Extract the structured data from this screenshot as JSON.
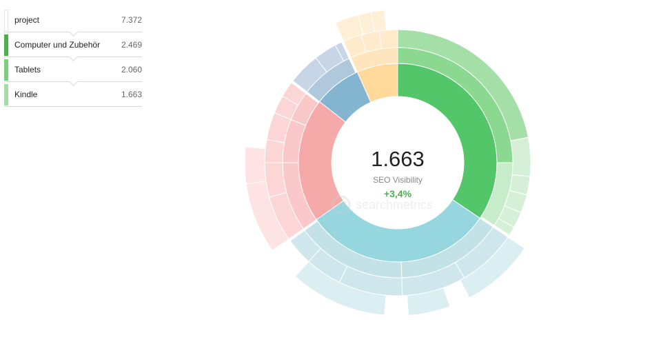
{
  "breadcrumb": [
    {
      "label": "project",
      "value": "7.372",
      "color": ""
    },
    {
      "label": "Computer und Zubehör",
      "value": "2.469",
      "color": "#4caf50"
    },
    {
      "label": "Tablets",
      "value": "2.060",
      "color": "#7bcf7e"
    },
    {
      "label": "Kindle",
      "value": "1.663",
      "color": "#a4dca5"
    }
  ],
  "center": {
    "value": "1.663",
    "label": "SEO Visibility",
    "delta": "+3,4%"
  },
  "watermark": "searchmetrics",
  "chart_data": {
    "type": "sunburst",
    "title": "",
    "rings": [
      {
        "level": 1,
        "segments": [
          {
            "color": "#54c66a",
            "start_deg": 0,
            "end_deg": 124
          },
          {
            "color": "#96d6de",
            "start_deg": 124,
            "end_deg": 235
          },
          {
            "color": "#f6a9a9",
            "start_deg": 235,
            "end_deg": 308
          },
          {
            "color": "#84b5d0",
            "start_deg": 308,
            "end_deg": 336
          },
          {
            "color": "#ffd99a",
            "start_deg": 336,
            "end_deg": 360
          }
        ]
      },
      {
        "level": 2,
        "segments": [
          {
            "color": "#8bd890",
            "start_deg": 0,
            "end_deg": 90
          },
          {
            "color": "#c6ecc9",
            "start_deg": 90,
            "end_deg": 123
          },
          {
            "color": "#c2e2e8",
            "start_deg": 124,
            "end_deg": 178
          },
          {
            "color": "#c2e2e8",
            "start_deg": 178,
            "end_deg": 234
          },
          {
            "color": "#fac8c8",
            "start_deg": 235,
            "end_deg": 270
          },
          {
            "color": "#fac8c8",
            "start_deg": 270,
            "end_deg": 292
          },
          {
            "color": "#fac8c8",
            "start_deg": 292,
            "end_deg": 307
          },
          {
            "color": "#b0c8dc",
            "start_deg": 308,
            "end_deg": 335
          },
          {
            "color": "#ffe5bd",
            "start_deg": 336,
            "end_deg": 360
          }
        ]
      },
      {
        "level": 3,
        "segments": [
          {
            "color": "#a4dfa8",
            "start_deg": 0,
            "end_deg": 79
          },
          {
            "color": "#d6f0d8",
            "start_deg": 79,
            "end_deg": 96
          },
          {
            "color": "#d6f0d8",
            "start_deg": 96,
            "end_deg": 104
          },
          {
            "color": "#d6f0d8",
            "start_deg": 104,
            "end_deg": 112
          },
          {
            "color": "#d6f0d8",
            "start_deg": 112,
            "end_deg": 119
          },
          {
            "color": "#d6f0d8",
            "start_deg": 119,
            "end_deg": 123
          },
          {
            "color": "#cfe7ec",
            "start_deg": 124,
            "end_deg": 150
          },
          {
            "color": "#cfe7ec",
            "start_deg": 150,
            "end_deg": 178
          },
          {
            "color": "#cfe7ec",
            "start_deg": 178,
            "end_deg": 206
          },
          {
            "color": "#cfe7ec",
            "start_deg": 206,
            "end_deg": 222
          },
          {
            "color": "#cfe7ec",
            "start_deg": 222,
            "end_deg": 234
          },
          {
            "color": "#fcd6d6",
            "start_deg": 235,
            "end_deg": 255
          },
          {
            "color": "#fcd6d6",
            "start_deg": 255,
            "end_deg": 270
          },
          {
            "color": "#fcd6d6",
            "start_deg": 270,
            "end_deg": 280
          },
          {
            "color": "#fcd6d6",
            "start_deg": 280,
            "end_deg": 292
          },
          {
            "color": "#fcd6d6",
            "start_deg": 292,
            "end_deg": 300
          },
          {
            "color": "#fcd6d6",
            "start_deg": 300,
            "end_deg": 307
          },
          {
            "color": "#c6d6e6",
            "start_deg": 308,
            "end_deg": 322
          },
          {
            "color": "#c6d6e6",
            "start_deg": 322,
            "end_deg": 332
          },
          {
            "color": "#c6d6e6",
            "start_deg": 332,
            "end_deg": 335
          },
          {
            "color": "#ffebcc",
            "start_deg": 336,
            "end_deg": 344
          },
          {
            "color": "#ffebcc",
            "start_deg": 344,
            "end_deg": 352
          },
          {
            "color": "#ffebcc",
            "start_deg": 352,
            "end_deg": 360
          }
        ]
      },
      {
        "level": 4,
        "segments": [
          {
            "color": "#dbeef2",
            "start_deg": 124,
            "end_deg": 152
          },
          {
            "color": "#dbeef2",
            "start_deg": 160,
            "end_deg": 176
          },
          {
            "color": "#dbeef2",
            "start_deg": 185,
            "end_deg": 222
          },
          {
            "color": "#fde3e3",
            "start_deg": 235,
            "end_deg": 262
          },
          {
            "color": "#fde3e3",
            "start_deg": 262,
            "end_deg": 276
          },
          {
            "color": "#ffefd6",
            "start_deg": 336,
            "end_deg": 345
          },
          {
            "color": "#ffefd6",
            "start_deg": 345,
            "end_deg": 350
          },
          {
            "color": "#ffefd6",
            "start_deg": 350,
            "end_deg": 355
          }
        ]
      }
    ]
  }
}
